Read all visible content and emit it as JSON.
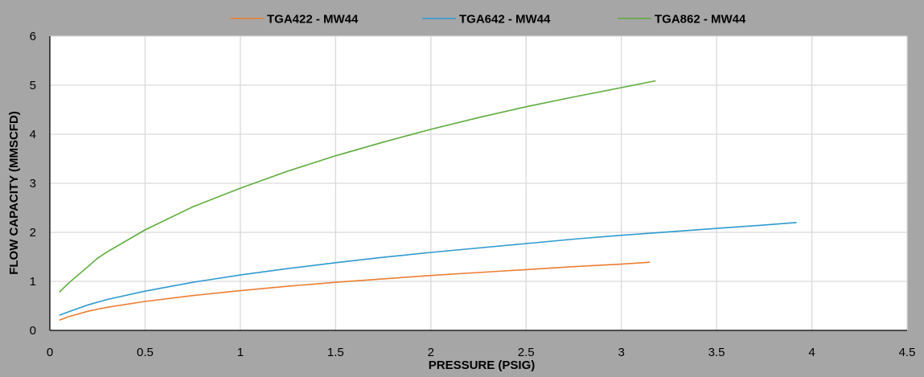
{
  "chart_data": {
    "type": "line",
    "title": "",
    "xlabel": "PRESSURE (PSIG)",
    "ylabel": "FLOW CAPACITY (MMSCFD)",
    "xlim": [
      0,
      4.5
    ],
    "ylim": [
      0,
      6
    ],
    "x_ticks": [
      "0",
      "0.5",
      "1",
      "1.5",
      "2",
      "2.5",
      "3",
      "3.5",
      "4",
      "4.5"
    ],
    "y_ticks": [
      "0",
      "1",
      "2",
      "3",
      "4",
      "5",
      "6"
    ],
    "grid": true,
    "legend_position": "top",
    "background_color": "#a6a6a6",
    "plot_background_color": "#ffffff",
    "grid_color": "#d9d9d9",
    "series": [
      {
        "name": "TGA422 - MW44",
        "color": "#ed7d31",
        "points": [
          [
            0.05,
            0.21
          ],
          [
            0.1,
            0.28
          ],
          [
            0.2,
            0.39
          ],
          [
            0.3,
            0.47
          ],
          [
            0.5,
            0.59
          ],
          [
            0.75,
            0.71
          ],
          [
            1.0,
            0.81
          ],
          [
            1.25,
            0.9
          ],
          [
            1.5,
            0.98
          ],
          [
            1.75,
            1.05
          ],
          [
            2.0,
            1.12
          ],
          [
            2.25,
            1.18
          ],
          [
            2.5,
            1.24
          ],
          [
            2.75,
            1.3
          ],
          [
            3.0,
            1.35
          ],
          [
            3.15,
            1.39
          ]
        ]
      },
      {
        "name": "TGA642 - MW44",
        "color": "#2e9ad0",
        "points": [
          [
            0.05,
            0.31
          ],
          [
            0.1,
            0.38
          ],
          [
            0.2,
            0.52
          ],
          [
            0.3,
            0.63
          ],
          [
            0.5,
            0.8
          ],
          [
            0.75,
            0.98
          ],
          [
            1.0,
            1.13
          ],
          [
            1.25,
            1.26
          ],
          [
            1.5,
            1.38
          ],
          [
            1.75,
            1.49
          ],
          [
            2.0,
            1.59
          ],
          [
            2.25,
            1.68
          ],
          [
            2.5,
            1.77
          ],
          [
            2.75,
            1.86
          ],
          [
            3.0,
            1.94
          ],
          [
            3.25,
            2.01
          ],
          [
            3.5,
            2.08
          ],
          [
            3.75,
            2.15
          ],
          [
            3.92,
            2.2
          ]
        ]
      },
      {
        "name": "TGA862 - MW44",
        "color": "#5eac3d",
        "points": [
          [
            0.05,
            0.78
          ],
          [
            0.1,
            0.97
          ],
          [
            0.2,
            1.3
          ],
          [
            0.25,
            1.47
          ],
          [
            0.3,
            1.6
          ],
          [
            0.5,
            2.05
          ],
          [
            0.75,
            2.52
          ],
          [
            1.0,
            2.9
          ],
          [
            1.25,
            3.25
          ],
          [
            1.5,
            3.56
          ],
          [
            1.75,
            3.84
          ],
          [
            2.0,
            4.1
          ],
          [
            2.25,
            4.34
          ],
          [
            2.5,
            4.56
          ],
          [
            2.75,
            4.76
          ],
          [
            3.0,
            4.95
          ],
          [
            3.18,
            5.09
          ]
        ]
      }
    ]
  }
}
